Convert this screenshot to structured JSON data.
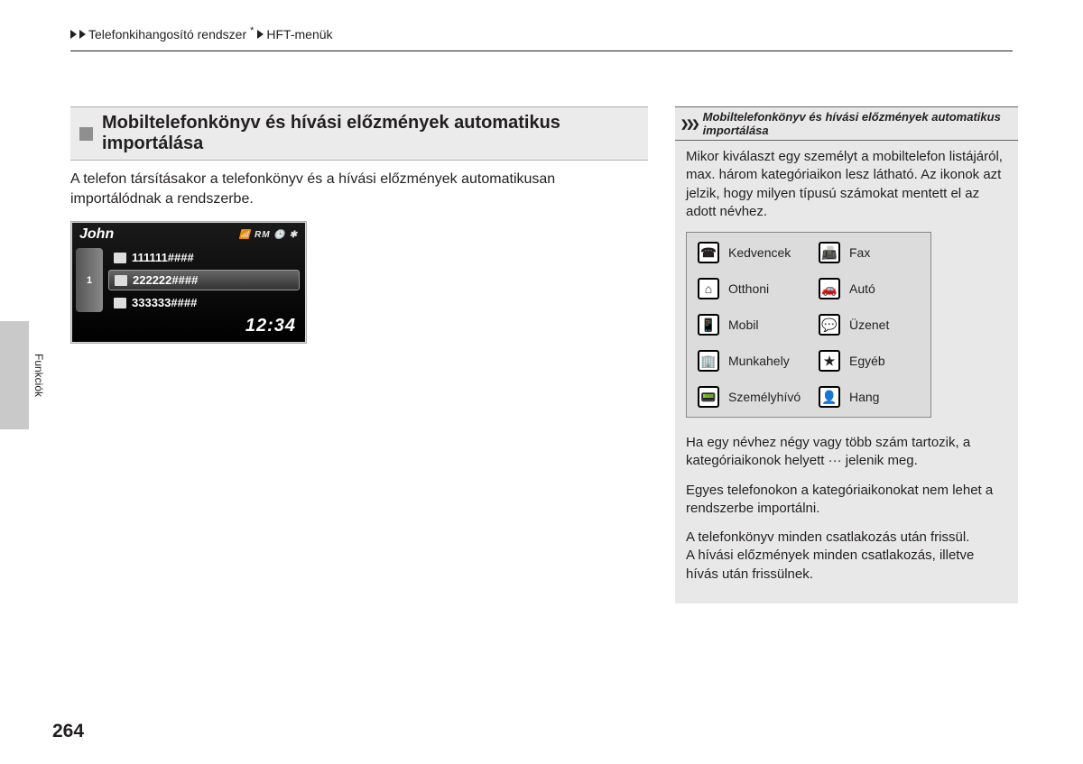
{
  "breadcrumb": {
    "item1": "Telefonkihangosító rendszer",
    "asterisk": "*",
    "item2": "HFT-menük"
  },
  "heading": "Mobiltelefonkönyv és hívási előzmények automatikus importálása",
  "body_text": "A telefon társításakor a telefonkönyv és a hívási előzmények automatikusan importálódnak a rendszerbe.",
  "phone": {
    "name": "John",
    "side_num": "1",
    "rows": [
      {
        "num": "111111####"
      },
      {
        "num": "222222####"
      },
      {
        "num": "333333####"
      }
    ],
    "time": "12:34"
  },
  "side_tab_label": "Funkciók",
  "right": {
    "title": "Mobiltelefonkönyv és hívási előzmények automatikus importálása",
    "intro": "Mikor kiválaszt egy személyt a mobiltelefon listájáról, max. három kategóriaikon lesz látható. Az ikonok azt jelzik, hogy milyen típusú számokat mentett el az adott névhez.",
    "icons": {
      "r0c0": "Kedvencek",
      "r0c1": "Fax",
      "r1c0": "Otthoni",
      "r1c1": "Autó",
      "r2c0": "Mobil",
      "r2c1": "Üzenet",
      "r3c0": "Munkahely",
      "r3c1": "Egyéb",
      "r4c0": "Személyhívó",
      "r4c1": "Hang"
    },
    "glyph": {
      "r0c0": "☎",
      "r0c1": "📠",
      "r1c0": "⌂",
      "r1c1": "🚗",
      "r2c0": "📱",
      "r2c1": "💬",
      "r3c0": "🏢",
      "r3c1": "★",
      "r4c0": "📟",
      "r4c1": "👤"
    },
    "p2": "Ha egy névhez négy vagy több szám tartozik, a kategóriaikonok helyett ··· jelenik meg.",
    "p3": "Egyes telefonokon a kategóriaikonokat nem lehet a rendszerbe importálni.",
    "p4a": "A telefonkönyv minden csatlakozás után frissül.",
    "p4b": "A hívási előzmények minden csatlakozás, illetve hívás után frissülnek."
  },
  "page_number": "264",
  "colors": {
    "page_bg": "#ffffff",
    "text": "#231f20",
    "heading_bg": "#ebebeb",
    "right_bg": "#e8e8e8",
    "sidetab_bg": "#c9c9c9"
  }
}
